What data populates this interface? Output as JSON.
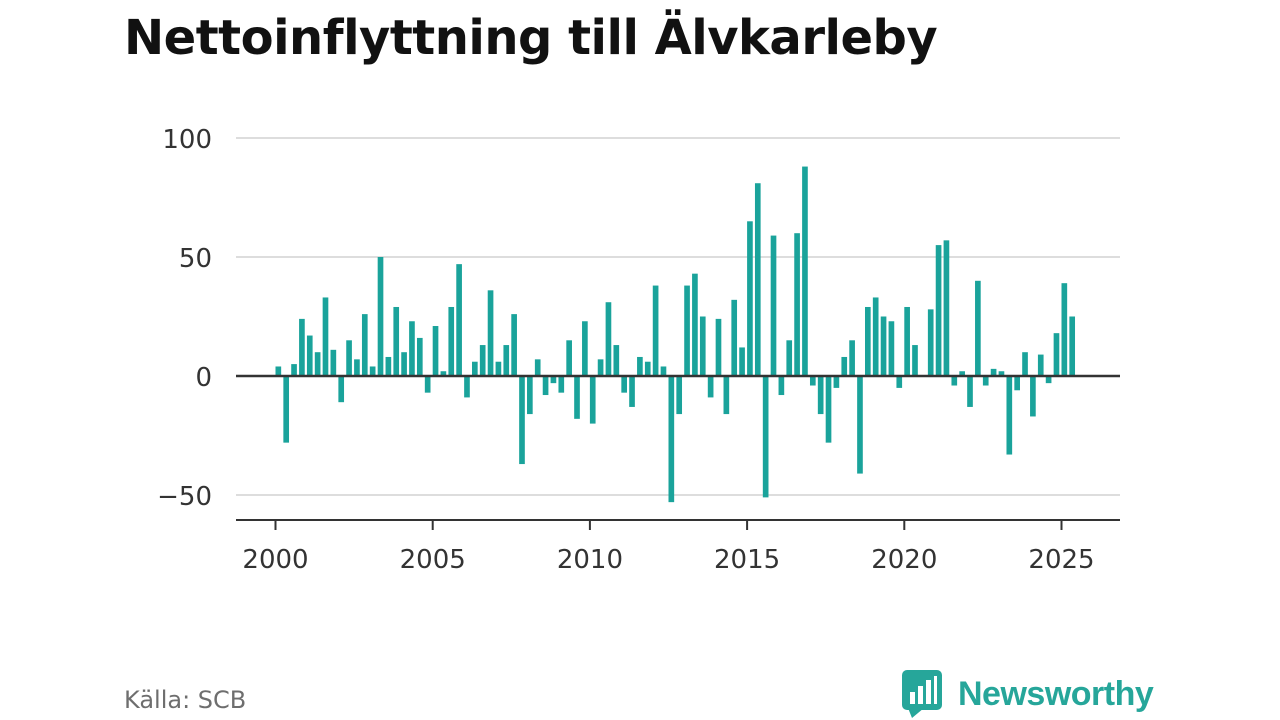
{
  "title": "Nettoinflyttning till Älvkarleby",
  "source": "Källa: SCB",
  "brand": "Newsworthy",
  "colors": {
    "bar": "#1aa39b",
    "brand": "#26a69a",
    "grid": "#dddddd",
    "axis": "#333333"
  },
  "chart_data": {
    "type": "bar",
    "title": "Nettoinflyttning till Älvkarleby",
    "xlabel": "",
    "ylabel": "",
    "grid": true,
    "ylim": [
      -60,
      110
    ],
    "xlim": [
      1999.6,
      2026.4
    ],
    "yticks": [
      -50,
      0,
      50,
      100
    ],
    "ytick_labels": [
      "−50",
      "0",
      "50",
      "100"
    ],
    "xticks": [
      2000,
      2005,
      2010,
      2015,
      2020,
      2025
    ],
    "xtick_labels": [
      "2000",
      "2005",
      "2010",
      "2015",
      "2020",
      "2025"
    ],
    "start_year": 2000,
    "values": [
      4,
      -28,
      5,
      24,
      17,
      10,
      33,
      11,
      -11,
      15,
      7,
      26,
      4,
      50,
      8,
      29,
      10,
      23,
      16,
      -7,
      21,
      2,
      29,
      47,
      -9,
      6,
      13,
      36,
      6,
      13,
      26,
      -37,
      -16,
      7,
      -8,
      -3,
      -7,
      15,
      -18,
      23,
      -20,
      7,
      31,
      13,
      -7,
      -13,
      8,
      6,
      38,
      4,
      -53,
      -16,
      38,
      43,
      25,
      -9,
      24,
      -16,
      32,
      12,
      65,
      81,
      -51,
      59,
      -8,
      15,
      60,
      88,
      -4,
      -16,
      -28,
      -5,
      8,
      15,
      -41,
      29,
      33,
      25,
      23,
      -5,
      29,
      13,
      0,
      28,
      55,
      57,
      -4,
      2,
      -13,
      40,
      -4,
      3,
      2,
      -33,
      -6,
      10,
      -17,
      9,
      -3,
      18,
      39,
      25
    ]
  }
}
